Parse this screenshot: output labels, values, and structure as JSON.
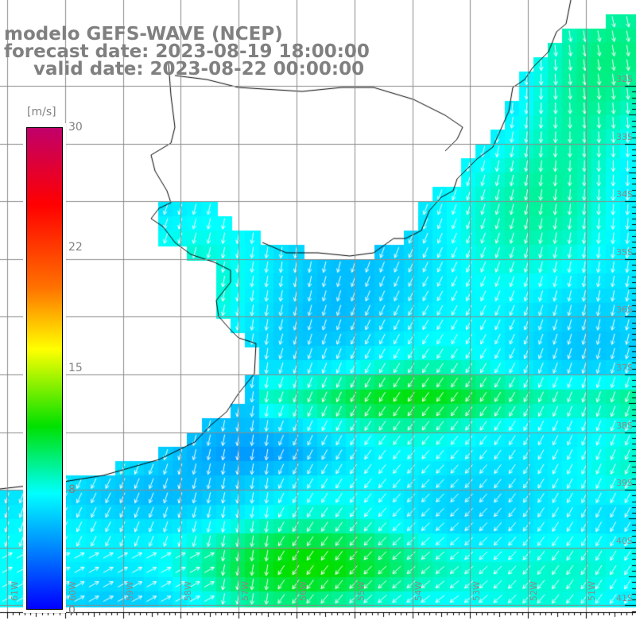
{
  "header": {
    "line1": "modelo GEFS-WAVE (NCEP)",
    "line2": "forecast date: 2023-08-19 18:00:00",
    "line3": "valid date: 2023-08-22 00:00:00"
  },
  "colorbar": {
    "unit": "[m/s]",
    "ticks": [
      "30",
      "22",
      "15",
      "8",
      "0"
    ],
    "tick_values": [
      30,
      22,
      15,
      8,
      0
    ]
  },
  "axes": {
    "lat_labels": [
      "32S",
      "33S",
      "34S",
      "35S",
      "36S",
      "37S",
      "38S",
      "39S",
      "40S",
      "41S"
    ],
    "lon_labels": [
      "61W",
      "60W",
      "59W",
      "58W",
      "57W",
      "56W",
      "55W",
      "54W",
      "53W",
      "52W",
      "51W"
    ]
  },
  "colors": {
    "grid": "#8c8c8c",
    "arrow": "#ffffff",
    "land": "#ffffff",
    "coast": "#000000",
    "text": "#808080"
  }
}
